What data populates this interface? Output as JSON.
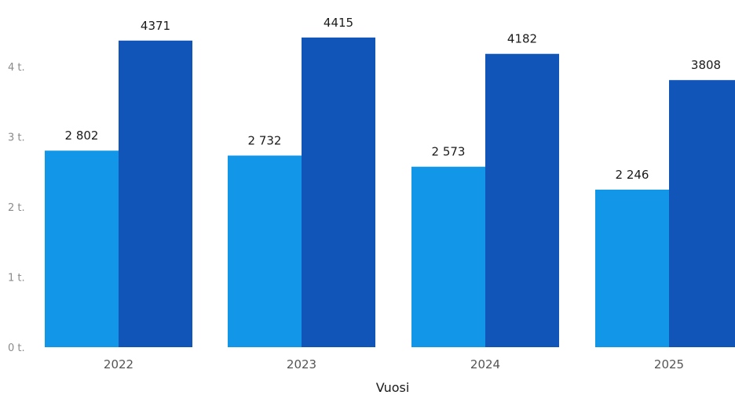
{
  "chart_data": {
    "type": "bar",
    "categories": [
      "2022",
      "2023",
      "2024",
      "2025"
    ],
    "series": [
      {
        "values": [
          2802,
          2732,
          2573,
          2246
        ],
        "labels": [
          "2 802",
          "2 732",
          "2 573",
          "2 246"
        ],
        "color": "#1296e8"
      },
      {
        "values": [
          4371,
          4415,
          4182,
          3808
        ],
        "labels": [
          "4371",
          "4415",
          "4182",
          "3808"
        ],
        "color": "#1255b8"
      }
    ],
    "yticks": [
      {
        "value": 0,
        "label": "0 t."
      },
      {
        "value": 1000,
        "label": "1 t."
      },
      {
        "value": 2000,
        "label": "2 t."
      },
      {
        "value": 3000,
        "label": "3 t."
      },
      {
        "value": 4000,
        "label": "4 t."
      }
    ],
    "ylim": [
      0,
      4500
    ],
    "xlabel": "Vuosi",
    "ylabel": "",
    "title": "",
    "grid": false,
    "legend": "none"
  }
}
